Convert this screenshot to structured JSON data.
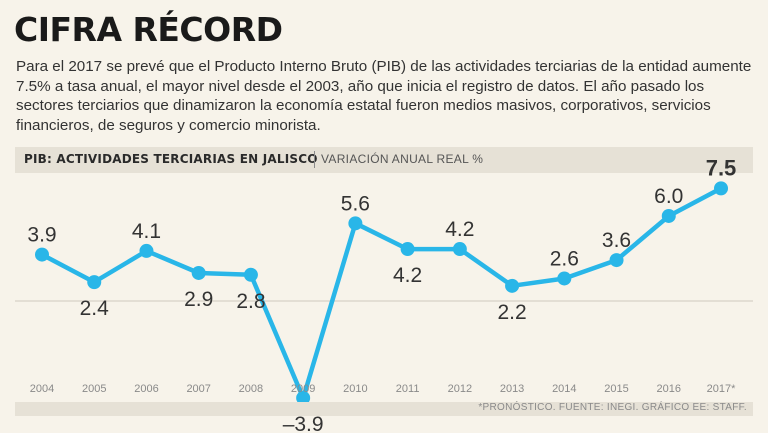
{
  "header": {
    "title": "CIFRA RÉCORD",
    "intro": "Para el 2017 se prevé que el Producto Interno Bruto (PIB) de las actividades terciarias de la entidad aumente 7.5% a tasa anual, el mayor nivel desde el 2003, año que inicia el registro de datos. El año pasado los sectores terciarios que dinamizaron la economía estatal fueron medios masivos, corporativos, servicios financieros, de seguros y comercio minorista."
  },
  "chart_header": {
    "title": "PIB: ACTIVIDADES TERCIARIAS EN JALISCO",
    "subtitle": "VARIACIÓN ANUAL REAL %"
  },
  "footer": {
    "source": "*PRONÓSTICO.   FUENTE: INEGI.  GRÁFICO EE: STAFF."
  },
  "colors": {
    "line": "#29b6e8",
    "background": "#f7f3ea",
    "band": "#e6e1d6"
  },
  "chart_data": {
    "type": "line",
    "title": "PIB: ACTIVIDADES TERCIARIAS EN JALISCO",
    "subtitle": "VARIACIÓN ANUAL REAL %",
    "xlabel": "",
    "ylabel": "Variación anual real %",
    "categories": [
      "2004",
      "2005",
      "2006",
      "2007",
      "2008",
      "2009",
      "2010",
      "2011",
      "2012",
      "2013",
      "2014",
      "2015",
      "2016",
      "2017*"
    ],
    "values": [
      3.9,
      2.4,
      4.1,
      2.9,
      2.8,
      -3.9,
      5.6,
      4.2,
      4.2,
      2.2,
      2.6,
      3.6,
      6.0,
      7.5
    ],
    "value_labels": [
      "3.9",
      "2.4",
      "4.1",
      "2.9",
      "2.8",
      "–3.9",
      "5.6",
      "4.2",
      "4.2",
      "2.2",
      "2.6",
      "3.6",
      "6.0",
      "7.5"
    ],
    "ylim": [
      -4.5,
      8.5
    ],
    "grid": false,
    "highlight_last": true
  }
}
